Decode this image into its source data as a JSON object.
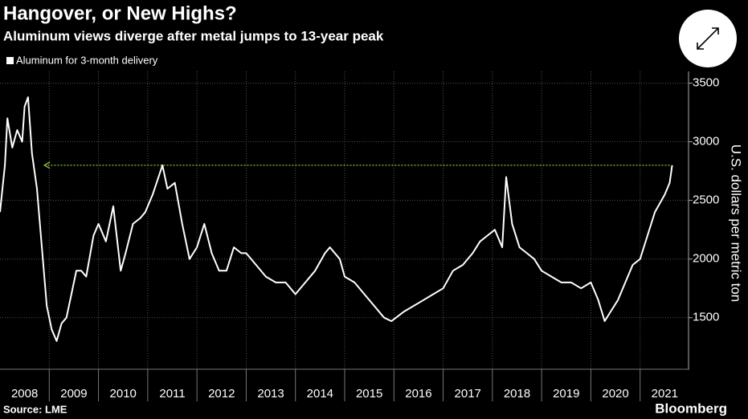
{
  "chart_data": {
    "type": "line",
    "title": "Hangover, or New Highs?",
    "subtitle": "Aluminum views diverge after metal jumps to 13-year peak",
    "y_label": "U.S. dollars per metric ton",
    "source": "Source: LME",
    "brand": "Bloomberg",
    "legend": "top-left",
    "grid": true,
    "ylim": [
      1060,
      3600
    ],
    "yticks": [
      1500,
      2000,
      2500,
      3000,
      3500
    ],
    "xlim": [
      2008,
      2022
    ],
    "xticks": [
      {
        "value": 2008,
        "label": "2008"
      },
      {
        "value": 2009,
        "label": "2009"
      },
      {
        "value": 2010,
        "label": "2010"
      },
      {
        "value": 2011,
        "label": "2011"
      },
      {
        "value": 2012,
        "label": "2012"
      },
      {
        "value": 2013,
        "label": "2013"
      },
      {
        "value": 2014,
        "label": "2014"
      },
      {
        "value": 2015,
        "label": "2015"
      },
      {
        "value": 2016,
        "label": "2016"
      },
      {
        "value": 2017,
        "label": "2017"
      },
      {
        "value": 2018,
        "label": "2018"
      },
      {
        "value": 2019,
        "label": "2019"
      },
      {
        "value": 2020,
        "label": "2020"
      },
      {
        "value": 2021,
        "label": "2021"
      }
    ],
    "reference_line": {
      "value": 2800,
      "x": [
        2021.6,
        2008.9
      ],
      "color": "#8dc63f"
    },
    "series": [
      {
        "name": "Aluminum for 3-month delivery",
        "color": "#ffffff",
        "x": [
          2008.0,
          2008.1,
          2008.15,
          2008.25,
          2008.35,
          2008.45,
          2008.5,
          2008.57,
          2008.65,
          2008.75,
          2008.85,
          2008.95,
          2009.05,
          2009.15,
          2009.25,
          2009.35,
          2009.45,
          2009.55,
          2009.65,
          2009.75,
          2009.9,
          2010.0,
          2010.15,
          2010.3,
          2010.45,
          2010.55,
          2010.7,
          2010.85,
          2010.95,
          2011.1,
          2011.3,
          2011.4,
          2011.55,
          2011.7,
          2011.85,
          2012.0,
          2012.15,
          2012.3,
          2012.45,
          2012.6,
          2012.75,
          2012.9,
          2013.0,
          2013.2,
          2013.4,
          2013.6,
          2013.8,
          2014.0,
          2014.2,
          2014.4,
          2014.6,
          2014.7,
          2014.9,
          2015.0,
          2015.2,
          2015.4,
          2015.6,
          2015.8,
          2015.95,
          2016.2,
          2016.4,
          2016.6,
          2016.8,
          2017.0,
          2017.2,
          2017.4,
          2017.6,
          2017.75,
          2017.9,
          2018.05,
          2018.2,
          2018.28,
          2018.4,
          2018.55,
          2018.7,
          2018.85,
          2019.0,
          2019.2,
          2019.4,
          2019.6,
          2019.8,
          2020.0,
          2020.15,
          2020.28,
          2020.4,
          2020.55,
          2020.7,
          2020.85,
          2021.0,
          2021.15,
          2021.3,
          2021.5,
          2021.6,
          2021.65
        ],
        "values": [
          2400,
          2800,
          3200,
          2950,
          3100,
          3000,
          3300,
          3380,
          2900,
          2600,
          2100,
          1600,
          1400,
          1300,
          1450,
          1500,
          1700,
          1900,
          1900,
          1850,
          2200,
          2300,
          2150,
          2450,
          1900,
          2050,
          2300,
          2350,
          2400,
          2550,
          2800,
          2600,
          2650,
          2300,
          2000,
          2100,
          2300,
          2050,
          1900,
          1900,
          2100,
          2050,
          2050,
          1950,
          1850,
          1800,
          1800,
          1700,
          1800,
          1900,
          2050,
          2100,
          2000,
          1850,
          1800,
          1700,
          1600,
          1500,
          1470,
          1550,
          1600,
          1650,
          1700,
          1750,
          1900,
          1950,
          2050,
          2150,
          2200,
          2250,
          2100,
          2700,
          2300,
          2100,
          2050,
          2000,
          1900,
          1850,
          1800,
          1800,
          1750,
          1800,
          1650,
          1470,
          1550,
          1650,
          1800,
          1950,
          2000,
          2200,
          2400,
          2550,
          2650,
          2800
        ]
      }
    ]
  }
}
